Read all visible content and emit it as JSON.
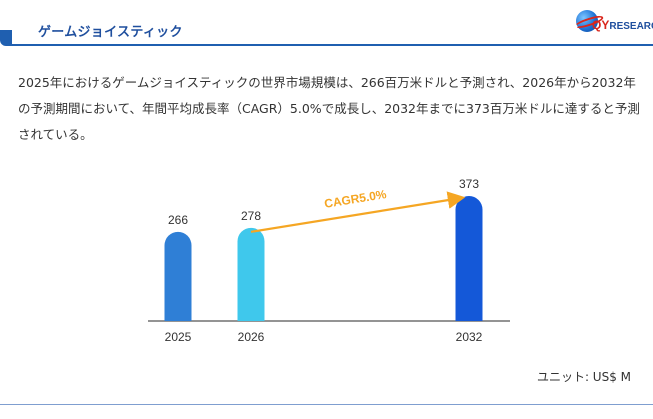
{
  "header": {
    "title": "ゲームジョイスティック",
    "logo_text": "QYRESEARCH"
  },
  "description": "2025年におけるゲームジョイスティックの世界市場規模は、266百万米ドルと予測され、2026年から2032年の予測期間において、年間平均成長率（CAGR）5.0%で成長し、2032年までに373百万米ドルに達すると予測されている。",
  "unit_label": "ユニット: US$ M",
  "colors": {
    "accent": "#1f5fb0",
    "arrow": "#f5a623"
  },
  "chart_data": {
    "type": "bar",
    "categories": [
      "2025",
      "2026",
      "2032"
    ],
    "values": [
      266,
      278,
      373
    ],
    "data_labels": [
      "266",
      "278",
      "373"
    ],
    "bar_colors": [
      "#2f7fd6",
      "#3fc8ec",
      "#1458d8"
    ],
    "annotation": "CAGR5.0%",
    "xlabel": "",
    "ylabel": ""
  }
}
